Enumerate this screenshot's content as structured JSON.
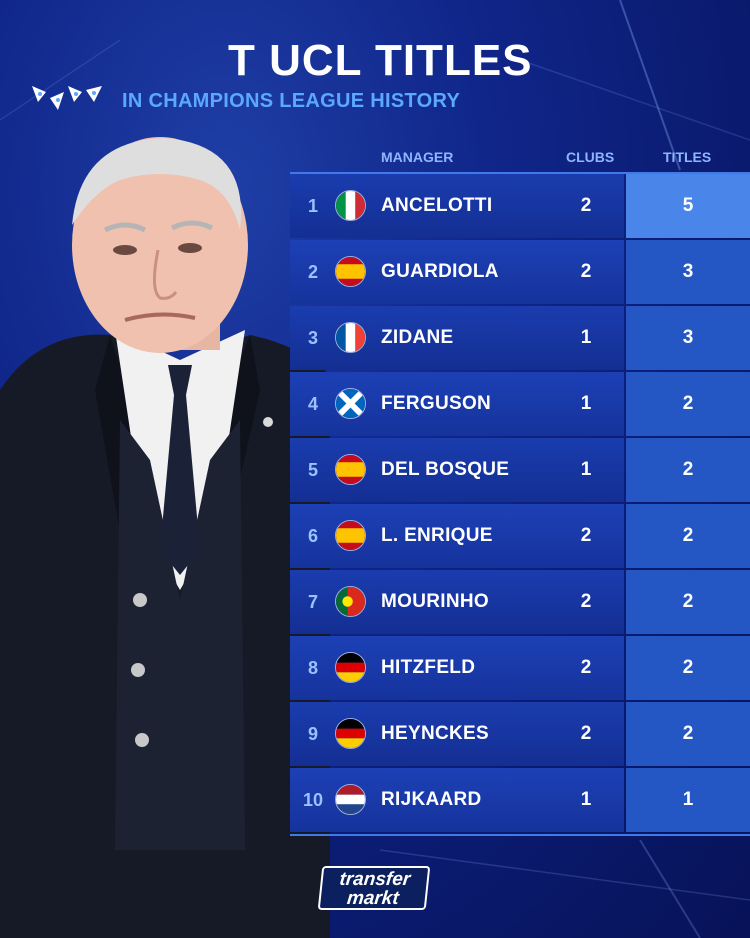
{
  "header": {
    "title": "T UCL TITLES",
    "subtitle": "IN CHAMPIONS LEAGUE HISTORY"
  },
  "table": {
    "columns": {
      "manager": "MANAGER",
      "clubs": "CLUBS",
      "titles": "TITLES"
    },
    "rows": [
      {
        "rank": "1",
        "flag": "italy-flag",
        "manager": "ANCELOTTI",
        "clubs": "2",
        "titles": "5"
      },
      {
        "rank": "2",
        "flag": "spain-flag",
        "manager": "GUARDIOLA",
        "clubs": "2",
        "titles": "3"
      },
      {
        "rank": "3",
        "flag": "france-flag",
        "manager": "ZIDANE",
        "clubs": "1",
        "titles": "3"
      },
      {
        "rank": "4",
        "flag": "scotland-flag",
        "manager": "FERGUSON",
        "clubs": "1",
        "titles": "2"
      },
      {
        "rank": "5",
        "flag": "spain-flag",
        "manager": "DEL BOSQUE",
        "clubs": "1",
        "titles": "2"
      },
      {
        "rank": "6",
        "flag": "spain-flag",
        "manager": "L. ENRIQUE",
        "clubs": "2",
        "titles": "2"
      },
      {
        "rank": "7",
        "flag": "portugal-flag",
        "manager": "MOURINHO",
        "clubs": "2",
        "titles": "2"
      },
      {
        "rank": "8",
        "flag": "germany-flag",
        "manager": "HITZFELD",
        "clubs": "2",
        "titles": "2"
      },
      {
        "rank": "9",
        "flag": "germany-flag",
        "manager": "HEYNCKES",
        "clubs": "2",
        "titles": "2"
      },
      {
        "rank": "10",
        "flag": "netherlands-flag",
        "manager": "RIJKAARD",
        "clubs": "1",
        "titles": "1"
      }
    ]
  },
  "logo": {
    "line1": "transfer",
    "line2": "markt"
  },
  "icons": {
    "competition": "champions-league-starball-icon"
  },
  "colors": {
    "accent": "#5aa8ff",
    "background": "#10268a",
    "titles_highlight": "#4a86ea"
  }
}
